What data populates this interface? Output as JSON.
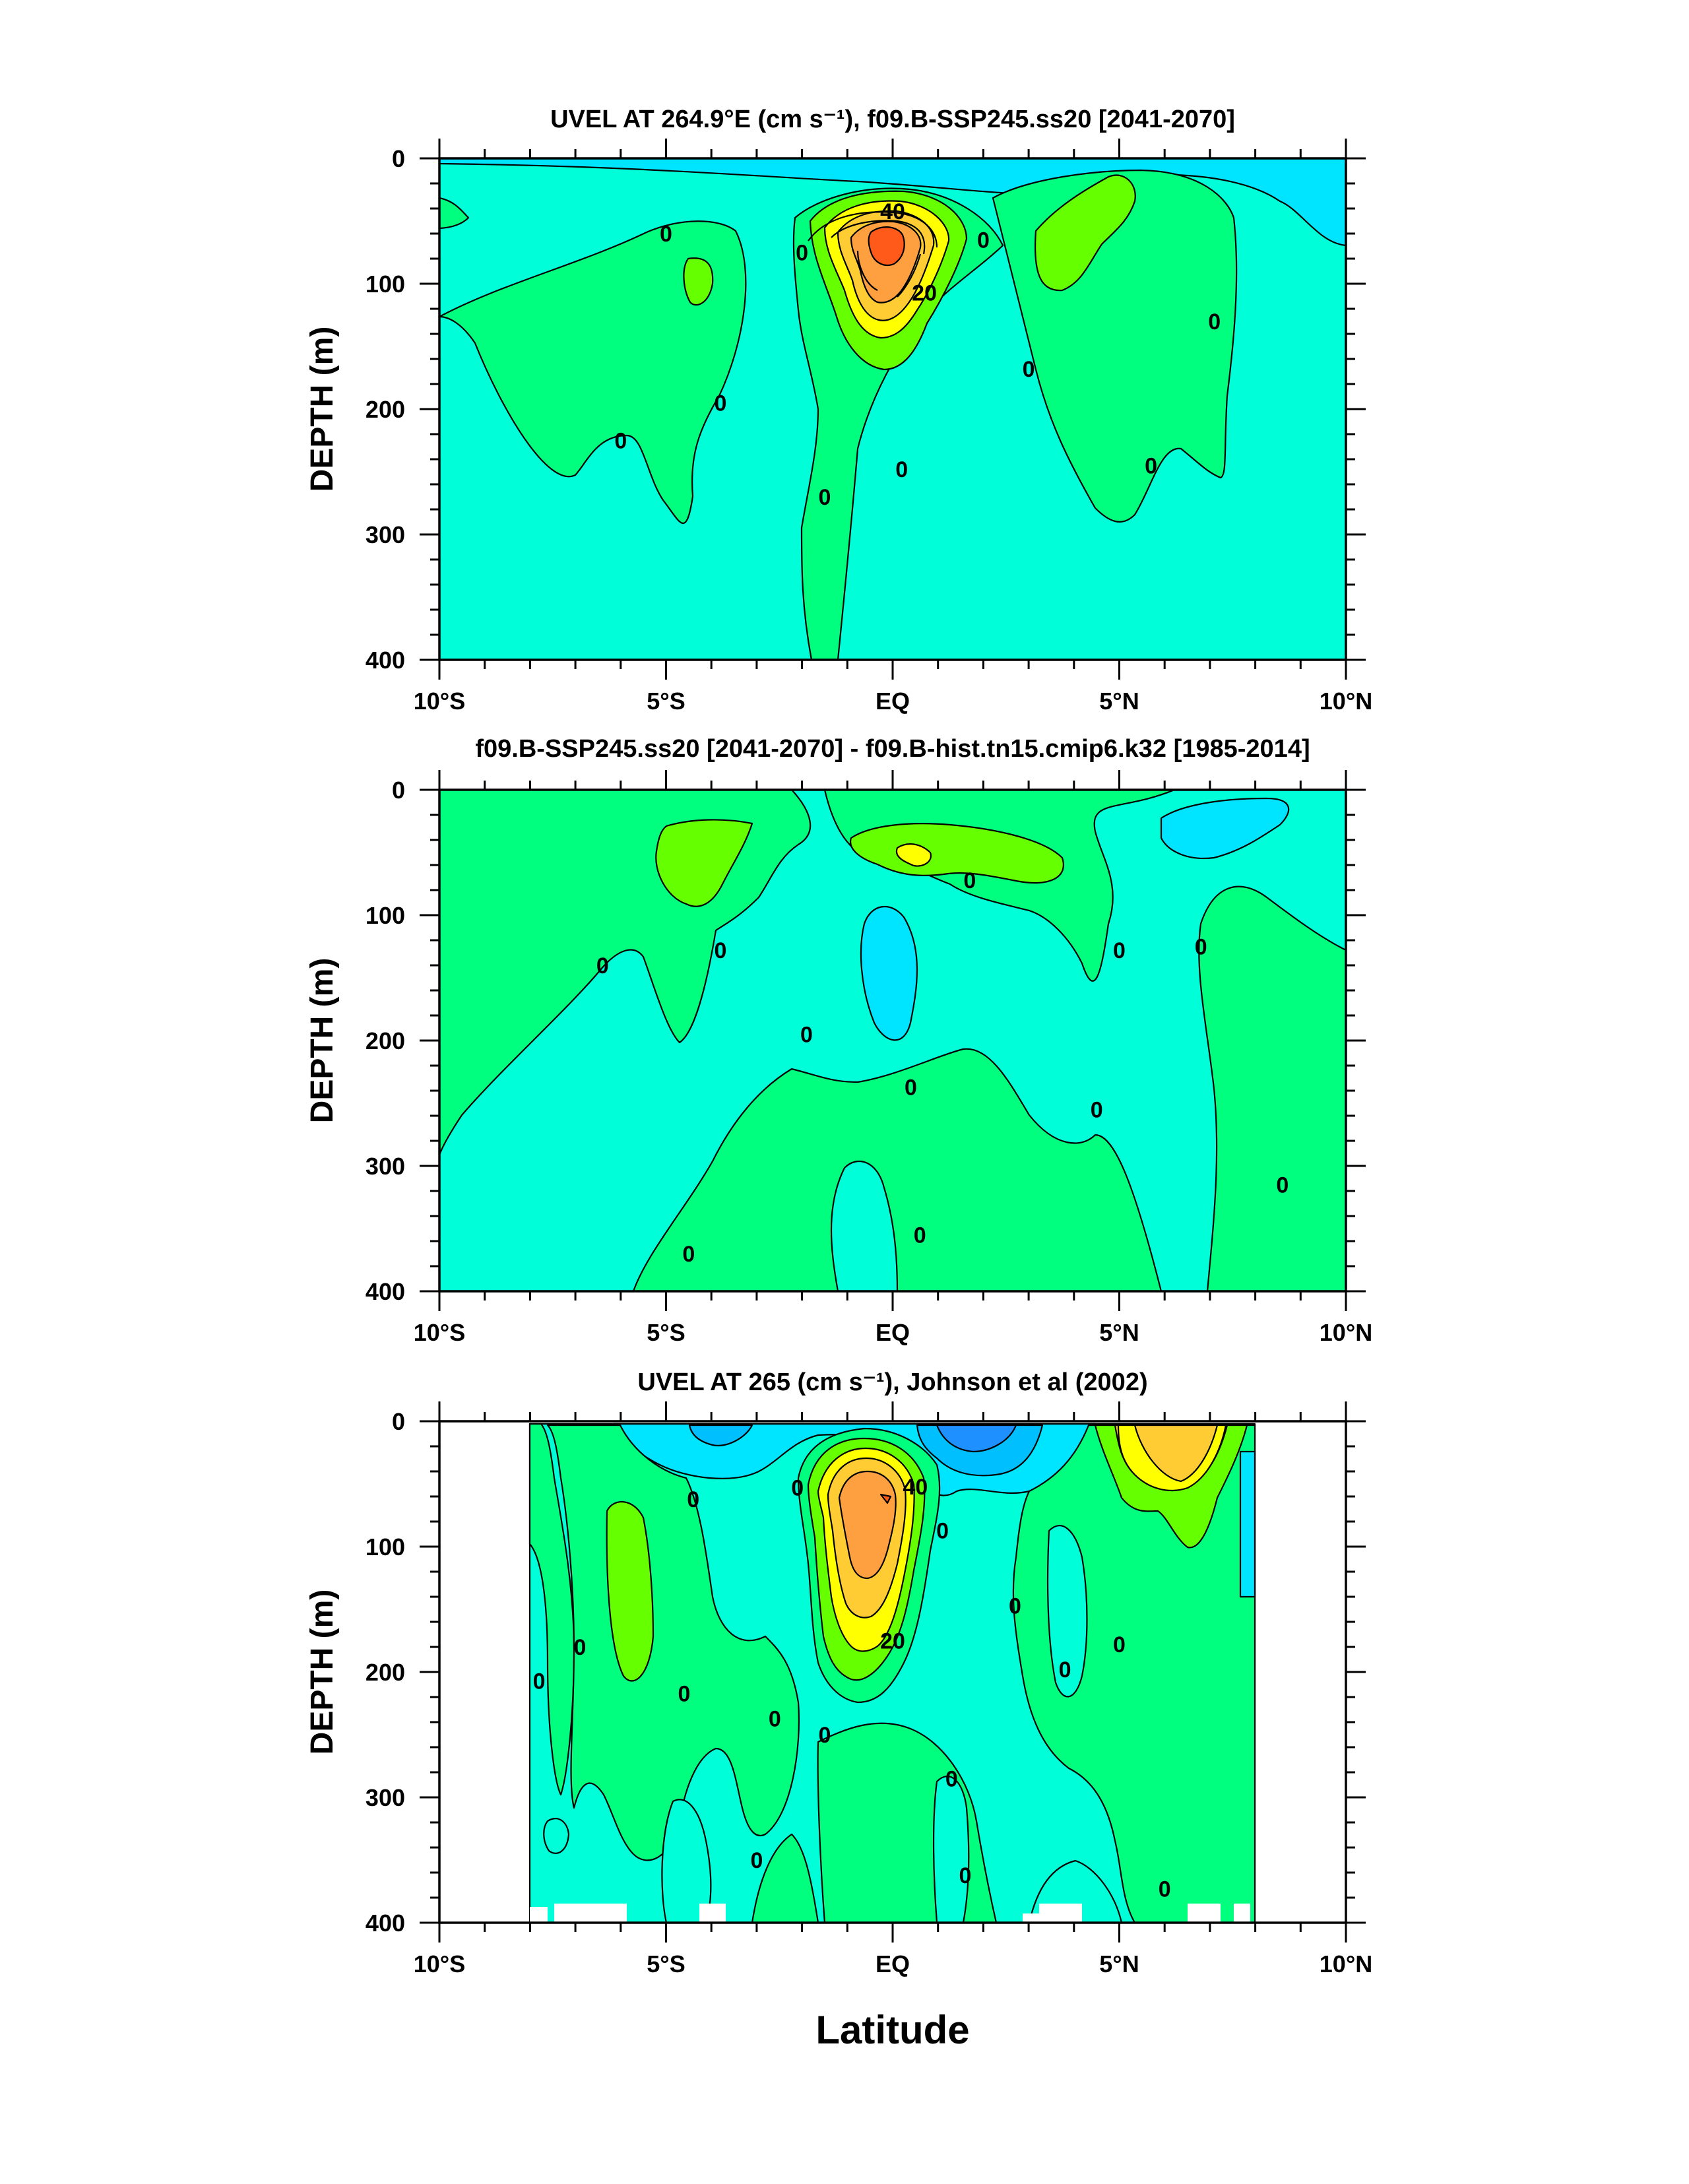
{
  "figure": {
    "x_axis_label": "Latitude",
    "colors": {
      "c_m40": "#1e90ff",
      "c_m20": "#00bfff",
      "c_m10": "#00e5ff",
      "c_0": "#00ffd8",
      "c_5": "#00ff7f",
      "c_10": "#66ff00",
      "c_20": "#ffff00",
      "c_30": "#ffcc33",
      "c_40": "#ffa040",
      "c_50": "#ff5a1a",
      "missing": "#ffffff"
    }
  },
  "chart_data": [
    {
      "type": "contour",
      "title": "UVEL AT 264.9°E (cm s⁻¹), f09.B-SSP245.ss20 [2041-2070]",
      "xlabel": "Latitude",
      "ylabel": "DEPTH (m)",
      "x_range": [
        -10,
        10
      ],
      "y_range": [
        0,
        400
      ],
      "y_inverted": true,
      "x_ticks": [
        -10,
        -5,
        0,
        5,
        10
      ],
      "x_tick_labels": [
        "10°S",
        "5°S",
        "EQ",
        "5°N",
        "10°N"
      ],
      "y_ticks": [
        0,
        100,
        200,
        300,
        400
      ],
      "y_tick_labels": [
        "0",
        "100",
        "200",
        "300",
        "400"
      ],
      "contour_labels": [
        {
          "text": "0",
          "lat": -5.0,
          "depth": 60
        },
        {
          "text": "0",
          "lat": -3.8,
          "depth": 195
        },
        {
          "text": "0",
          "lat": -6.0,
          "depth": 225
        },
        {
          "text": "0",
          "lat": -2.0,
          "depth": 75
        },
        {
          "text": "0",
          "lat": -1.5,
          "depth": 270
        },
        {
          "text": "0",
          "lat": 0.2,
          "depth": 248
        },
        {
          "text": "0",
          "lat": 2.0,
          "depth": 65
        },
        {
          "text": "0",
          "lat": 3.0,
          "depth": 168
        },
        {
          "text": "0",
          "lat": 5.7,
          "depth": 245
        },
        {
          "text": "0",
          "lat": 7.1,
          "depth": 130
        },
        {
          "text": "40",
          "lat": 0.0,
          "depth": 42
        },
        {
          "text": "20",
          "lat": 0.7,
          "depth": 107
        }
      ]
    },
    {
      "type": "contour",
      "title": "f09.B-SSP245.ss20 [2041-2070] - f09.B-hist.tn15.cmip6.k32 [1985-2014]",
      "xlabel": "Latitude",
      "ylabel": "DEPTH (m)",
      "x_range": [
        -10,
        10
      ],
      "y_range": [
        0,
        400
      ],
      "y_inverted": true,
      "x_ticks": [
        -10,
        -5,
        0,
        5,
        10
      ],
      "x_tick_labels": [
        "10°S",
        "5°S",
        "EQ",
        "5°N",
        "10°N"
      ],
      "y_ticks": [
        0,
        100,
        200,
        300,
        400
      ],
      "y_tick_labels": [
        "0",
        "100",
        "200",
        "300",
        "400"
      ],
      "contour_labels": [
        {
          "text": "0",
          "lat": -6.4,
          "depth": 140
        },
        {
          "text": "0",
          "lat": -3.8,
          "depth": 128
        },
        {
          "text": "0",
          "lat": -1.9,
          "depth": 195
        },
        {
          "text": "0",
          "lat": 0.4,
          "depth": 237
        },
        {
          "text": "0",
          "lat": 1.7,
          "depth": 72
        },
        {
          "text": "0",
          "lat": 5.0,
          "depth": 128
        },
        {
          "text": "0",
          "lat": 6.8,
          "depth": 125
        },
        {
          "text": "0",
          "lat": 4.5,
          "depth": 255
        },
        {
          "text": "0",
          "lat": 8.6,
          "depth": 315
        },
        {
          "text": "0",
          "lat": -4.5,
          "depth": 370
        },
        {
          "text": "0",
          "lat": 0.6,
          "depth": 355
        }
      ]
    },
    {
      "type": "contour",
      "title": "UVEL AT 265 (cm s⁻¹), Johnson et al (2002)",
      "xlabel": "Latitude",
      "ylabel": "DEPTH (m)",
      "x_range": [
        -10,
        10
      ],
      "y_range": [
        0,
        400
      ],
      "y_inverted": true,
      "data_extent_lat": [
        -8,
        8
      ],
      "x_ticks": [
        -10,
        -5,
        0,
        5,
        10
      ],
      "x_tick_labels": [
        "10°S",
        "5°S",
        "EQ",
        "5°N",
        "10°N"
      ],
      "y_ticks": [
        0,
        100,
        200,
        300,
        400
      ],
      "y_tick_labels": [
        "0",
        "100",
        "200",
        "300",
        "400"
      ],
      "contour_labels": [
        {
          "text": "0",
          "lat": -4.4,
          "depth": 62
        },
        {
          "text": "0",
          "lat": -2.1,
          "depth": 53
        },
        {
          "text": "0",
          "lat": 1.1,
          "depth": 87
        },
        {
          "text": "0",
          "lat": 2.7,
          "depth": 147
        },
        {
          "text": "0",
          "lat": 3.8,
          "depth": 198
        },
        {
          "text": "0",
          "lat": 5.0,
          "depth": 178
        },
        {
          "text": "0",
          "lat": -6.9,
          "depth": 180
        },
        {
          "text": "0",
          "lat": -7.8,
          "depth": 207
        },
        {
          "text": "0",
          "lat": -4.6,
          "depth": 217
        },
        {
          "text": "0",
          "lat": -2.6,
          "depth": 237
        },
        {
          "text": "0",
          "lat": -1.5,
          "depth": 250
        },
        {
          "text": "0",
          "lat": 1.3,
          "depth": 285
        },
        {
          "text": "0",
          "lat": -3.0,
          "depth": 350
        },
        {
          "text": "0",
          "lat": 1.6,
          "depth": 362
        },
        {
          "text": "0",
          "lat": 6.0,
          "depth": 373
        },
        {
          "text": "40",
          "lat": 0.5,
          "depth": 52
        },
        {
          "text": "20",
          "lat": 0.0,
          "depth": 175
        }
      ]
    }
  ]
}
